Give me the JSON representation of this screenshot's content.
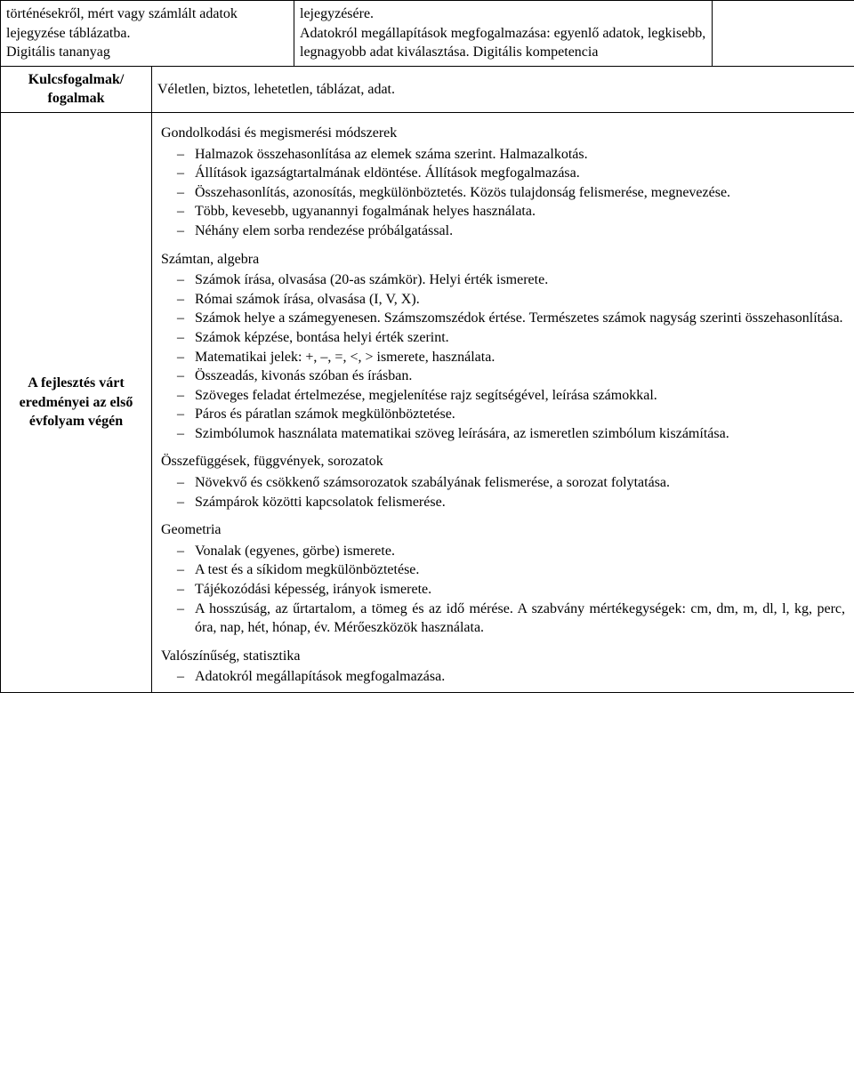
{
  "row1": {
    "left": "történésekről, mért vagy számlált adatok lejegyzése táblázatba.\nDigitális tananyag",
    "mid": "lejegyzésére.\nAdatokról megállapítások megfogalmazása: egyenlő adatok, legkisebb, legnagyobb adat kiválasztása. Digitális kompetencia",
    "right": ""
  },
  "row2": {
    "left": "Kulcsfogalmak/\nfogalmak",
    "value": "Véletlen, biztos, lehetetlen, táblázat, adat."
  },
  "row3": {
    "left": "A fejlesztés várt eredményei az első évfolyam végén",
    "s1": {
      "head": "Gondolkodási és megismerési módszerek",
      "items": [
        "Halmazok összehasonlítása az elemek száma szerint. Halmazalkotás.",
        "Állítások igazságtartalmának eldöntése. Állítások megfogalmazása.",
        "Összehasonlítás, azonosítás, megkülönböztetés. Közös tulajdonság felismerése, megnevezése.",
        "Több, kevesebb, ugyanannyi fogalmának helyes használata.",
        "Néhány elem sorba rendezése próbálgatással."
      ]
    },
    "s2": {
      "head": "Számtan, algebra",
      "items": [
        "Számok írása, olvasása (20-as számkör). Helyi érték ismerete.",
        "Római számok írása, olvasása (I, V, X).",
        "Számok helye a számegyenesen. Számszomszédok értése. Természetes számok nagyság szerinti összehasonlítása.",
        "Számok képzése, bontása helyi érték szerint.",
        "Matematikai jelek: +, –, =, <, > ismerete, használata.",
        "Összeadás, kivonás szóban és írásban.",
        "Szöveges feladat értelmezése, megjelenítése rajz segítségével, leírása számokkal.",
        "Páros és páratlan számok megkülönböztetése.",
        "Szimbólumok használata matematikai szöveg leírására, az ismeretlen szimbólum kiszámítása."
      ]
    },
    "s3": {
      "head": "Összefüggések, függvények, sorozatok",
      "items": [
        "Növekvő és csökkenő számsorozatok szabályának felismerése, a sorozat folytatása.",
        "Számpárok közötti kapcsolatok felismerése."
      ]
    },
    "s4": {
      "head": "Geometria",
      "items": [
        "Vonalak (egyenes, görbe) ismerete.",
        "A test és a síkidom megkülönböztetése.",
        "Tájékozódási képesség, irányok ismerete.",
        "A hosszúság, az űrtartalom, a tömeg és az idő mérése. A szabvány mértékegységek: cm, dm, m, dl, l, kg, perc, óra, nap, hét, hónap, év. Mérőeszközök használata."
      ]
    },
    "s5": {
      "head": "Valószínűség, statisztika",
      "items": [
        "Adatokról megállapítások megfogalmazása."
      ]
    }
  }
}
